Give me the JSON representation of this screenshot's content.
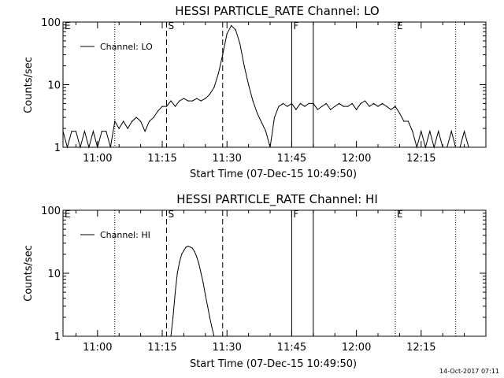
{
  "timestamp": "14-Oct-2017 07:11",
  "chart_data": [
    {
      "type": "line",
      "title": "HESSI PARTICLE_RATE Channel: LO",
      "xlabel": "Start Time (07-Dec-15 10:49:50)",
      "ylabel": "Counts/sec",
      "yscale": "log",
      "ylim": [
        1,
        100
      ],
      "yticks": [
        {
          "v": 1,
          "label": "1"
        },
        {
          "v": 10,
          "label": "10"
        },
        {
          "v": 100,
          "label": "100"
        }
      ],
      "xlim": [
        "10:52",
        "12:30"
      ],
      "xticks": [
        {
          "t": "11:00",
          "label": "11:00"
        },
        {
          "t": "11:15",
          "label": "11:15"
        },
        {
          "t": "11:30",
          "label": "11:30"
        },
        {
          "t": "11:45",
          "label": "11:45"
        },
        {
          "t": "12:00",
          "label": "12:00"
        },
        {
          "t": "12:15",
          "label": "12:15"
        }
      ],
      "grid": false,
      "legend": {
        "position": "top-left",
        "entries": [
          "Channel: LO"
        ]
      },
      "markers": [
        {
          "t": "10:52",
          "style": "dotted",
          "label": "E"
        },
        {
          "t": "11:04",
          "style": "dotted",
          "label": ""
        },
        {
          "t": "11:16",
          "style": "dashed",
          "label": "S"
        },
        {
          "t": "11:29",
          "style": "dashed",
          "label": ""
        },
        {
          "t": "11:45",
          "style": "solid",
          "label": "F"
        },
        {
          "t": "11:50",
          "style": "solid",
          "label": ""
        },
        {
          "t": "12:09",
          "style": "dotted",
          "label": "E"
        },
        {
          "t": "12:23",
          "style": "dotted",
          "label": ""
        }
      ],
      "series": [
        {
          "name": "Channel: LO",
          "color": "#000000",
          "x": [
            "10:52",
            "10:53",
            "10:54",
            "10:55",
            "10:56",
            "10:57",
            "10:58",
            "10:59",
            "11:00",
            "11:01",
            "11:02",
            "11:03",
            "11:04",
            "11:05",
            "11:06",
            "11:07",
            "11:08",
            "11:09",
            "11:10",
            "11:11",
            "11:12",
            "11:13",
            "11:14",
            "11:15",
            "11:16",
            "11:17",
            "11:18",
            "11:19",
            "11:20",
            "11:21",
            "11:22",
            "11:23",
            "11:24",
            "11:25",
            "11:26",
            "11:27",
            "11:28",
            "11:29",
            "11:30",
            "11:31",
            "11:32",
            "11:33",
            "11:34",
            "11:35",
            "11:36",
            "11:37",
            "11:38",
            "11:39",
            "11:40",
            "11:41",
            "11:42",
            "11:43",
            "11:44",
            "11:45",
            "11:46",
            "11:47",
            "11:48",
            "11:49",
            "11:50",
            "11:51",
            "11:52",
            "11:53",
            "11:54",
            "11:55",
            "11:56",
            "11:57",
            "11:58",
            "11:59",
            "12:00",
            "12:01",
            "12:02",
            "12:03",
            "12:04",
            "12:05",
            "12:06",
            "12:07",
            "12:08",
            "12:09",
            "12:10",
            "12:11",
            "12:12",
            "12:13",
            "12:14",
            "12:15",
            "12:16",
            "12:17",
            "12:18",
            "12:19",
            "12:20",
            "12:21",
            "12:22",
            "12:23",
            "12:24",
            "12:25",
            "12:26"
          ],
          "y": [
            1.8,
            1.0,
            1.8,
            1.8,
            1.0,
            1.8,
            1.0,
            1.8,
            1.0,
            1.8,
            1.8,
            1.0,
            2.6,
            2.0,
            2.6,
            2.0,
            2.6,
            3.0,
            2.6,
            1.8,
            2.6,
            3.0,
            3.8,
            4.5,
            4.5,
            5.5,
            4.5,
            5.5,
            6.0,
            5.5,
            5.5,
            6.0,
            5.5,
            6.0,
            7.0,
            9.0,
            15.0,
            30.0,
            65.0,
            88.0,
            75.0,
            45.0,
            20.0,
            10.0,
            5.5,
            3.5,
            2.5,
            1.8,
            1.0,
            3.0,
            4.5,
            5.0,
            4.5,
            5.0,
            4.0,
            5.0,
            4.5,
            5.0,
            5.0,
            4.0,
            4.5,
            5.0,
            4.0,
            4.5,
            5.0,
            4.5,
            4.5,
            5.0,
            4.0,
            5.0,
            5.5,
            4.5,
            5.0,
            4.5,
            5.0,
            4.5,
            4.0,
            4.5,
            3.5,
            2.6,
            2.6,
            1.8,
            1.0,
            1.8,
            1.0,
            1.8,
            1.0,
            1.8,
            1.0,
            1.0,
            1.8,
            1.0,
            1.0,
            1.8,
            1.0
          ]
        }
      ]
    },
    {
      "type": "line",
      "title": "HESSI PARTICLE_RATE Channel: HI",
      "xlabel": "Start Time (07-Dec-15 10:49:50)",
      "ylabel": "Counts/sec",
      "yscale": "log",
      "ylim": [
        1,
        100
      ],
      "yticks": [
        {
          "v": 1,
          "label": "1"
        },
        {
          "v": 10,
          "label": "10"
        },
        {
          "v": 100,
          "label": "100"
        }
      ],
      "xlim": [
        "10:52",
        "12:30"
      ],
      "xticks": [
        {
          "t": "11:00",
          "label": "11:00"
        },
        {
          "t": "11:15",
          "label": "11:15"
        },
        {
          "t": "11:30",
          "label": "11:30"
        },
        {
          "t": "11:45",
          "label": "11:45"
        },
        {
          "t": "12:00",
          "label": "12:00"
        },
        {
          "t": "12:15",
          "label": "12:15"
        }
      ],
      "grid": false,
      "legend": {
        "position": "top-left",
        "entries": [
          "Channel: HI"
        ]
      },
      "markers": [
        {
          "t": "10:52",
          "style": "dotted",
          "label": "E"
        },
        {
          "t": "11:04",
          "style": "dotted",
          "label": ""
        },
        {
          "t": "11:16",
          "style": "dashed",
          "label": "S"
        },
        {
          "t": "11:29",
          "style": "dashed",
          "label": ""
        },
        {
          "t": "11:45",
          "style": "solid",
          "label": "F"
        },
        {
          "t": "11:50",
          "style": "solid",
          "label": ""
        },
        {
          "t": "12:09",
          "style": "dotted",
          "label": "E"
        },
        {
          "t": "12:23",
          "style": "dotted",
          "label": ""
        }
      ],
      "series": [
        {
          "name": "Channel: HI",
          "color": "#000000",
          "x": [
            "11:17:00",
            "11:17:30",
            "11:18:00",
            "11:18:30",
            "11:19:00",
            "11:19:30",
            "11:20:00",
            "11:20:30",
            "11:21:00",
            "11:21:30",
            "11:22:00",
            "11:22:30",
            "11:23:00",
            "11:23:30",
            "11:24:00",
            "11:24:30",
            "11:25:00",
            "11:25:30",
            "11:26:00",
            "11:26:30",
            "11:27:00"
          ],
          "y": [
            1.0,
            2.0,
            5.0,
            10.0,
            15.0,
            20.0,
            23.0,
            26.0,
            27.0,
            26.0,
            25.0,
            22.0,
            18.0,
            14.0,
            10.0,
            7.0,
            4.5,
            3.0,
            2.0,
            1.4,
            1.0
          ]
        }
      ]
    }
  ]
}
